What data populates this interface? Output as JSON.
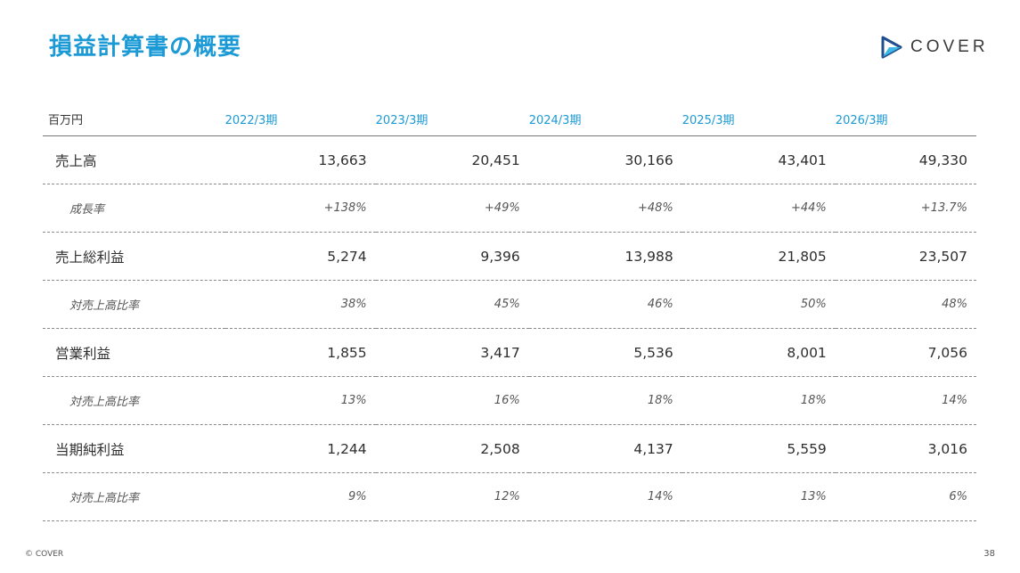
{
  "slide": {
    "title": "損益計算書の概要",
    "page_number": "38",
    "copyright": "© COVER",
    "colors": {
      "accent": "#1b9ad6",
      "logo_dark": "#1f4f8f",
      "logo_light": "#3bb8e6"
    }
  },
  "logo": {
    "text": "COVER",
    "icon": "play-triangle-icon"
  },
  "table": {
    "unit": "百万円",
    "years": [
      "2022/3期",
      "2023/3期",
      "2024/3期",
      "2025/3期",
      "2026/3期"
    ],
    "rows": [
      {
        "type": "main",
        "label": "売上高",
        "values": [
          "13,663",
          "20,451",
          "30,166",
          "43,401",
          "49,330"
        ]
      },
      {
        "type": "sub",
        "label": "成長率",
        "values": [
          "+138%",
          "+49%",
          "+48%",
          "+44%",
          "+13.7%"
        ]
      },
      {
        "type": "main",
        "label": "売上総利益",
        "values": [
          "5,274",
          "9,396",
          "13,988",
          "21,805",
          "23,507"
        ]
      },
      {
        "type": "sub",
        "label": "対売上高比率",
        "values": [
          "38%",
          "45%",
          "46%",
          "50%",
          "48%"
        ]
      },
      {
        "type": "main",
        "label": "営業利益",
        "values": [
          "1,855",
          "3,417",
          "5,536",
          "8,001",
          "7,056"
        ]
      },
      {
        "type": "sub",
        "label": "対売上高比率",
        "values": [
          "13%",
          "16%",
          "18%",
          "18%",
          "14%"
        ]
      },
      {
        "type": "main",
        "label": "当期純利益",
        "values": [
          "1,244",
          "2,508",
          "4,137",
          "5,559",
          "3,016"
        ]
      },
      {
        "type": "sub",
        "label": "対売上高比率",
        "values": [
          "9%",
          "12%",
          "14%",
          "13%",
          "6%"
        ]
      }
    ]
  }
}
